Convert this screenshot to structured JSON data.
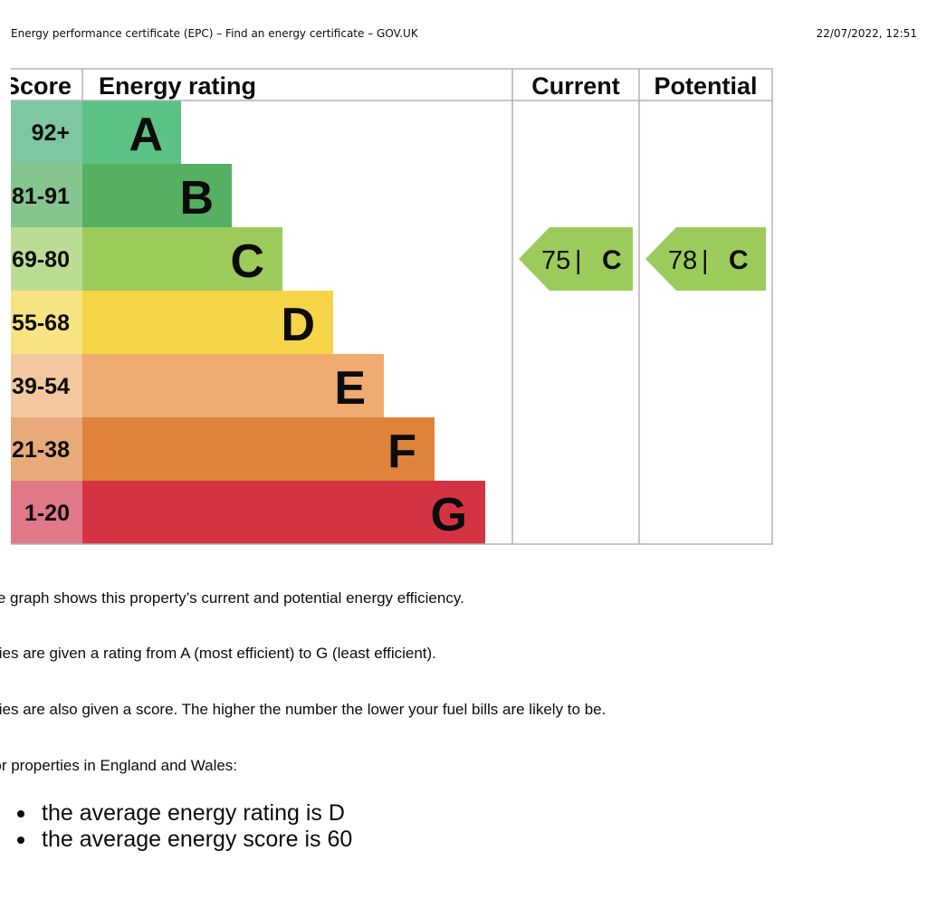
{
  "header": {
    "title": "Energy performance certificate (EPC) – Find an energy certificate – GOV.UK",
    "timestamp": "22/07/2022, 12:51"
  },
  "chart_data": {
    "type": "bar",
    "headers": {
      "score": "Score",
      "rating": "Energy rating",
      "current": "Current",
      "potential": "Potential"
    },
    "bands": [
      {
        "letter": "A",
        "score": "92+",
        "color": "#5cc184",
        "score_color": "#7fc7a0",
        "rank": 1
      },
      {
        "letter": "B",
        "score": "81-91",
        "color": "#56b061",
        "score_color": "#86c58f",
        "rank": 2
      },
      {
        "letter": "C",
        "score": "69-80",
        "color": "#9ccb5c",
        "score_color": "#bcdc94",
        "rank": 3
      },
      {
        "letter": "D",
        "score": "55-68",
        "color": "#f6d448",
        "score_color": "#f8e383",
        "rank": 4
      },
      {
        "letter": "E",
        "score": "39-54",
        "color": "#efab70",
        "score_color": "#f3c79f",
        "rank": 5
      },
      {
        "letter": "F",
        "score": "21-38",
        "color": "#df833a",
        "score_color": "#e8aa79",
        "rank": 6
      },
      {
        "letter": "G",
        "score": "1-20",
        "color": "#d43442",
        "score_color": "#e07888",
        "rank": 7
      }
    ],
    "current": {
      "score": 75,
      "letter": "C",
      "label": "75 | C"
    },
    "potential": {
      "score": 78,
      "letter": "C",
      "label": "78 | C"
    }
  },
  "text": {
    "para1": "The graph shows this property’s current and potential energy efficiency.",
    "para2": "Properties are given a rating from A (most efficient) to G (least efficient).",
    "para3": "Properties are also given a score. The higher the number the lower your fuel bills are likely to be.",
    "para4": "For properties in England and Wales:",
    "averages": [
      "the average energy rating is D",
      "the average energy score is 60"
    ]
  }
}
